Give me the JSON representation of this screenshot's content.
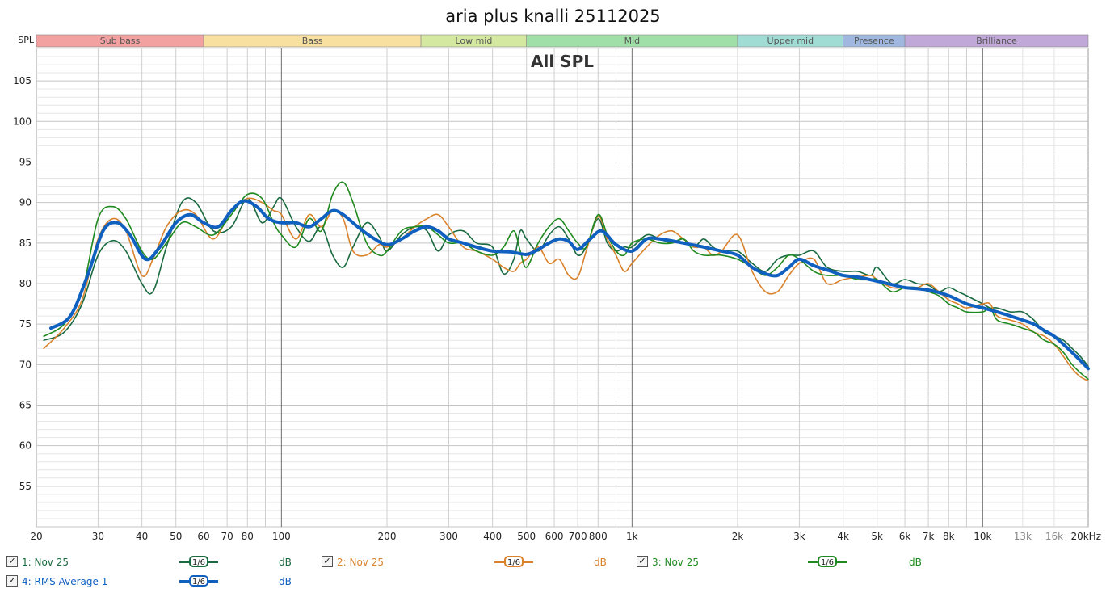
{
  "chart_data": {
    "type": "line",
    "title": "aria plus knalli 25112025",
    "plot_label": "All SPL",
    "ylabel": "SPL",
    "x_scale": "log",
    "xlim": [
      20,
      20000
    ],
    "ylim": [
      50,
      109
    ],
    "y_ticks": [
      55,
      60,
      65,
      70,
      75,
      80,
      85,
      90,
      95,
      100,
      105
    ],
    "x_ticks": [
      {
        "value": 20,
        "label": "20"
      },
      {
        "value": 30,
        "label": "30"
      },
      {
        "value": 40,
        "label": "40"
      },
      {
        "value": 50,
        "label": "50"
      },
      {
        "value": 60,
        "label": "60"
      },
      {
        "value": 70,
        "label": "70"
      },
      {
        "value": 80,
        "label": "80"
      },
      {
        "value": 100,
        "label": "100"
      },
      {
        "value": 200,
        "label": "200"
      },
      {
        "value": 300,
        "label": "300"
      },
      {
        "value": 400,
        "label": "400"
      },
      {
        "value": 500,
        "label": "500"
      },
      {
        "value": 600,
        "label": "600"
      },
      {
        "value": 700,
        "label": "700"
      },
      {
        "value": 800,
        "label": "800"
      },
      {
        "value": 1000,
        "label": "1k"
      },
      {
        "value": 2000,
        "label": "2k"
      },
      {
        "value": 3000,
        "label": "3k"
      },
      {
        "value": 4000,
        "label": "4k"
      },
      {
        "value": 5000,
        "label": "5k"
      },
      {
        "value": 6000,
        "label": "6k"
      },
      {
        "value": 7000,
        "label": "7k"
      },
      {
        "value": 8000,
        "label": "8k"
      },
      {
        "value": 10000,
        "label": "10k"
      },
      {
        "value": 13000,
        "label": "13k"
      },
      {
        "value": 16000,
        "label": "16k"
      },
      {
        "value": 20000,
        "label": "20kHz"
      }
    ],
    "bands": [
      {
        "name": "Sub bass",
        "from": 20,
        "to": 60,
        "color": "#f2a0a0"
      },
      {
        "name": "Bass",
        "from": 60,
        "to": 250,
        "color": "#f8e0a0"
      },
      {
        "name": "Low mid",
        "from": 250,
        "to": 500,
        "color": "#d4e8a0"
      },
      {
        "name": "Mid",
        "from": 500,
        "to": 2000,
        "color": "#a0e0a8"
      },
      {
        "name": "Upper mid",
        "from": 2000,
        "to": 4000,
        "color": "#a0dcd4"
      },
      {
        "name": "Presence",
        "from": 4000,
        "to": 6000,
        "color": "#a0b8e0"
      },
      {
        "name": "Brilliance",
        "from": 6000,
        "to": 20000,
        "color": "#c0a8d8"
      }
    ],
    "series": [
      {
        "name": "1: Nov 25",
        "color": "#1a6a40",
        "width": 1.6,
        "x": [
          21,
          24,
          27,
          30,
          33,
          36,
          40,
          43,
          47,
          52,
          57,
          64,
          72,
          80,
          88,
          95,
          100,
          110,
          120,
          130,
          140,
          150,
          160,
          175,
          190,
          200,
          220,
          240,
          260,
          280,
          300,
          330,
          360,
          400,
          430,
          460,
          480,
          500,
          540,
          580,
          620,
          660,
          700,
          740,
          800,
          850,
          900,
          950,
          1000,
          1100,
          1200,
          1300,
          1400,
          1500,
          1600,
          1700,
          1800,
          2000,
          2200,
          2400,
          2600,
          2800,
          3000,
          3300,
          3600,
          4000,
          4400,
          4800,
          5000,
          5500,
          6000,
          6500,
          7000,
          7500,
          8000,
          8500,
          9000,
          10000,
          10500,
          11000,
          12000,
          13000,
          14000,
          15000,
          16000,
          17000,
          18000,
          19000,
          20000
        ],
        "y": [
          73.0,
          74.0,
          77.5,
          83.5,
          85.3,
          84.0,
          80.0,
          79.0,
          84.5,
          90.0,
          90.0,
          86.5,
          87.0,
          90.5,
          87.5,
          89.5,
          90.5,
          87.0,
          85.2,
          87.0,
          83.5,
          82.0,
          84.5,
          87.5,
          85.8,
          84.0,
          86.0,
          87.0,
          86.5,
          84.0,
          86.0,
          86.5,
          85.0,
          84.5,
          81.2,
          83.0,
          86.5,
          85.5,
          84.0,
          86.0,
          87.0,
          85.5,
          83.5,
          84.5,
          88.0,
          85.0,
          84.0,
          84.5,
          84.5,
          86.0,
          85.5,
          85.0,
          85.5,
          84.5,
          85.5,
          84.5,
          84.0,
          84.0,
          82.5,
          81.5,
          83.0,
          83.5,
          83.5,
          84.0,
          82.0,
          81.5,
          81.5,
          81.0,
          82.0,
          80.0,
          80.5,
          80.0,
          79.8,
          79.0,
          79.5,
          79.0,
          78.5,
          77.5,
          77.0,
          77.0,
          76.5,
          76.5,
          75.5,
          74.0,
          73.5,
          73.0,
          72.0,
          71.0,
          69.8
        ]
      },
      {
        "name": "2: Nov 25",
        "color": "#d9822b",
        "width": 1.6,
        "x": [
          21,
          24,
          27,
          30,
          33,
          36,
          40,
          43,
          47,
          52,
          57,
          64,
          72,
          80,
          88,
          95,
          100,
          110,
          120,
          130,
          140,
          150,
          160,
          175,
          190,
          200,
          220,
          240,
          260,
          280,
          300,
          330,
          360,
          400,
          430,
          460,
          480,
          500,
          540,
          580,
          620,
          660,
          700,
          740,
          800,
          850,
          900,
          950,
          1000,
          1100,
          1200,
          1300,
          1400,
          1500,
          1600,
          1700,
          1800,
          2000,
          2200,
          2400,
          2600,
          2800,
          3000,
          3300,
          3600,
          4000,
          4400,
          4800,
          5000,
          5500,
          6000,
          6500,
          7000,
          7500,
          8000,
          8500,
          9000,
          10000,
          10500,
          11000,
          12000,
          13000,
          14000,
          15000,
          16000,
          17000,
          18000,
          19000,
          20000
        ],
        "y": [
          72.0,
          74.5,
          78.0,
          85.5,
          88.0,
          86.5,
          81.0,
          83.0,
          87.0,
          89.0,
          88.5,
          85.5,
          89.0,
          90.5,
          90.0,
          89.0,
          88.5,
          85.5,
          88.5,
          87.0,
          89.0,
          88.0,
          84.0,
          83.5,
          84.8,
          84.5,
          85.5,
          87.0,
          88.0,
          88.5,
          87.0,
          84.5,
          84.0,
          83.0,
          82.0,
          81.5,
          82.5,
          83.0,
          84.5,
          82.5,
          83.0,
          81.0,
          80.8,
          84.0,
          88.3,
          85.5,
          83.5,
          81.5,
          82.5,
          84.5,
          86.0,
          86.5,
          85.5,
          84.5,
          84.5,
          83.5,
          84.0,
          86.0,
          81.5,
          79.0,
          79.0,
          81.0,
          82.5,
          83.0,
          80.0,
          80.5,
          80.8,
          81.0,
          80.5,
          79.5,
          79.5,
          79.5,
          80.0,
          79.0,
          78.0,
          77.5,
          77.0,
          77.5,
          77.5,
          76.0,
          75.5,
          75.0,
          74.0,
          73.5,
          72.5,
          71.0,
          69.5,
          68.5,
          68.0
        ]
      },
      {
        "name": "3: Nov 25",
        "color": "#1f8a1f",
        "width": 1.6,
        "x": [
          21,
          24,
          27,
          30,
          33,
          36,
          40,
          43,
          47,
          52,
          57,
          64,
          72,
          80,
          88,
          95,
          100,
          110,
          120,
          130,
          140,
          150,
          160,
          175,
          190,
          200,
          220,
          240,
          260,
          280,
          300,
          330,
          360,
          400,
          430,
          460,
          480,
          500,
          540,
          580,
          620,
          660,
          700,
          740,
          800,
          850,
          900,
          950,
          1000,
          1100,
          1200,
          1300,
          1400,
          1500,
          1600,
          1700,
          1800,
          2000,
          2200,
          2400,
          2600,
          2800,
          3000,
          3300,
          3600,
          4000,
          4400,
          4800,
          5000,
          5500,
          6000,
          6500,
          7000,
          7500,
          8000,
          8500,
          9000,
          10000,
          10500,
          11000,
          12000,
          13000,
          14000,
          15000,
          16000,
          17000,
          18000,
          19000,
          20000
        ],
        "y": [
          73.5,
          75.0,
          79.0,
          88.0,
          89.5,
          88.0,
          84.0,
          83.0,
          85.0,
          87.5,
          87.0,
          86.0,
          88.5,
          91.0,
          90.5,
          87.5,
          86.0,
          84.5,
          88.0,
          86.5,
          91.0,
          92.5,
          90.0,
          85.0,
          83.5,
          84.0,
          86.5,
          87.0,
          87.0,
          86.0,
          85.0,
          85.0,
          84.0,
          83.5,
          84.5,
          86.5,
          84.0,
          82.0,
          85.0,
          87.0,
          88.0,
          86.5,
          85.0,
          84.5,
          88.5,
          86.0,
          84.0,
          83.5,
          85.0,
          85.5,
          85.0,
          85.0,
          85.5,
          84.0,
          83.5,
          83.5,
          83.5,
          83.0,
          82.0,
          81.0,
          82.0,
          83.5,
          83.0,
          81.5,
          81.0,
          81.0,
          80.5,
          80.5,
          80.5,
          79.0,
          79.5,
          79.5,
          79.0,
          78.5,
          77.5,
          77.0,
          76.5,
          76.5,
          77.0,
          75.5,
          75.0,
          74.5,
          74.0,
          73.0,
          72.5,
          71.5,
          70.0,
          69.0,
          68.2
        ]
      },
      {
        "name": "4: RMS Average 1",
        "color": "#1060c0",
        "width": 4,
        "x": [
          22,
          25,
          28,
          31,
          34,
          37,
          41,
          45,
          50,
          55,
          60,
          66,
          72,
          78,
          85,
          92,
          100,
          110,
          120,
          130,
          140,
          150,
          165,
          180,
          200,
          220,
          240,
          260,
          280,
          300,
          330,
          360,
          400,
          450,
          500,
          540,
          580,
          620,
          660,
          700,
          760,
          820,
          900,
          1000,
          1100,
          1200,
          1400,
          1600,
          1800,
          2000,
          2200,
          2400,
          2600,
          2800,
          3000,
          3300,
          3700,
          4000,
          4400,
          5000,
          5600,
          6000,
          7000,
          8000,
          9000,
          10000,
          11000,
          12000,
          13000,
          14000,
          15000,
          16000,
          17000,
          18000,
          19000,
          20000
        ],
        "y": [
          74.5,
          76.0,
          81.0,
          86.5,
          87.5,
          86.0,
          83.0,
          84.5,
          87.5,
          88.5,
          87.5,
          87.0,
          89.0,
          90.2,
          89.5,
          88.0,
          87.5,
          87.5,
          87.0,
          88.0,
          89.0,
          88.5,
          87.0,
          85.8,
          84.8,
          85.5,
          86.5,
          87.0,
          86.5,
          85.5,
          85.0,
          84.5,
          84.0,
          83.9,
          83.6,
          84.2,
          85.0,
          85.5,
          85.2,
          84.2,
          85.5,
          86.5,
          84.8,
          84.0,
          85.5,
          85.5,
          85.0,
          84.5,
          84.0,
          83.5,
          82.0,
          81.2,
          81.0,
          82.0,
          83.0,
          82.2,
          81.5,
          81.0,
          80.8,
          80.3,
          79.8,
          79.5,
          79.2,
          78.5,
          77.5,
          77.0,
          76.5,
          76.0,
          75.5,
          75.0,
          74.2,
          73.5,
          72.5,
          71.5,
          70.5,
          69.5
        ]
      }
    ],
    "legend": [
      {
        "label": "1: Nov 25",
        "smoothing": "1/6",
        "unit": "dB",
        "checked": "✓",
        "color": "#1a6a40"
      },
      {
        "label": "2: Nov 25",
        "smoothing": "1/6",
        "unit": "dB",
        "checked": "✓",
        "color": "#d9822b"
      },
      {
        "label": "3: Nov 25",
        "smoothing": "1/6",
        "unit": "dB",
        "checked": "✓",
        "color": "#1f8a1f"
      },
      {
        "label": "4: RMS Average 1",
        "smoothing": "1/6",
        "unit": "dB",
        "checked": "✓",
        "color": "#1060c0"
      }
    ]
  }
}
